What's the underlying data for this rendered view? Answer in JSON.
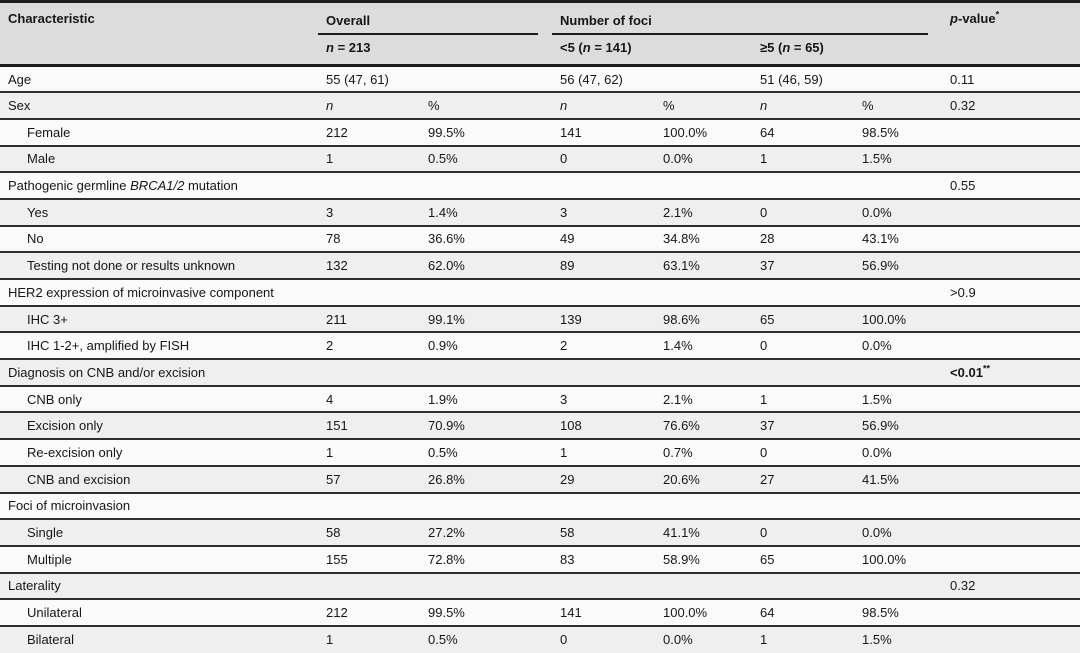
{
  "colors": {
    "header_bg": "#dcdcdc",
    "row_odd_bg": "#fafafa",
    "row_even_bg": "#efefef",
    "border_strong": "#1c1c1c",
    "border_row": "#2e2e2e",
    "text": "#161616"
  },
  "table": {
    "header": {
      "characteristic": "Characteristic",
      "overall_group": "Overall",
      "foci_group": "Number of foci",
      "pvalue": [
        {
          "t": "p",
          "i": true,
          "b": true
        },
        {
          "t": "-value",
          "b": true
        },
        {
          "t": "*",
          "sup": true
        }
      ],
      "overall_n": [
        {
          "t": "n",
          "i": true,
          "b": true
        },
        {
          "t": " = 213",
          "b": true
        }
      ],
      "foci_lt5": [
        {
          "t": "<5 (",
          "b": true
        },
        {
          "t": "n",
          "i": true,
          "b": true
        },
        {
          "t": " = 141)",
          "b": true
        }
      ],
      "foci_ge5": [
        {
          "t": "≥5 (",
          "b": true
        },
        {
          "t": "n",
          "i": true,
          "b": true
        },
        {
          "t": " = 65)",
          "b": true
        }
      ]
    },
    "subcolumns": [
      "n",
      "%",
      "n",
      "%",
      "n",
      "%"
    ],
    "rows": [
      {
        "name": "age",
        "label": "Age",
        "indent": false,
        "cells": [
          "55 (47, 61)",
          "",
          "56 (47, 62)",
          "",
          "51 (46, 59)",
          ""
        ],
        "p": "0.11"
      },
      {
        "name": "sex",
        "label": "Sex",
        "indent": false,
        "cells": [
          {
            "t": "n",
            "i": true
          },
          "%",
          {
            "t": "n",
            "i": true
          },
          "%",
          {
            "t": "n",
            "i": true
          },
          "%"
        ],
        "p": "0.32"
      },
      {
        "name": "female",
        "label": "Female",
        "indent": true,
        "cells": [
          "212",
          "99.5%",
          "141",
          "100.0%",
          "64",
          "98.5%"
        ],
        "p": ""
      },
      {
        "name": "male",
        "label": "Male",
        "indent": true,
        "cells": [
          "1",
          "0.5%",
          "0",
          "0.0%",
          "1",
          "1.5%"
        ],
        "p": ""
      },
      {
        "name": "brca-mutation",
        "label": [
          {
            "t": "Pathogenic germline "
          },
          {
            "t": "BRCA1/2",
            "i": true
          },
          {
            "t": " mutation"
          }
        ],
        "indent": false,
        "cells": [
          "",
          "",
          "",
          "",
          "",
          ""
        ],
        "p": "0.55"
      },
      {
        "name": "brca-yes",
        "label": "Yes",
        "indent": true,
        "cells": [
          "3",
          "1.4%",
          "3",
          "2.1%",
          "0",
          "0.0%"
        ],
        "p": ""
      },
      {
        "name": "brca-no",
        "label": "No",
        "indent": true,
        "cells": [
          "78",
          "36.6%",
          "49",
          "34.8%",
          "28",
          "43.1%"
        ],
        "p": ""
      },
      {
        "name": "brca-unknown",
        "label": "Testing not done or results unknown",
        "indent": true,
        "cells": [
          "132",
          "62.0%",
          "89",
          "63.1%",
          "37",
          "56.9%"
        ],
        "p": ""
      },
      {
        "name": "her2-expression",
        "label": "HER2 expression of microinvasive component",
        "indent": false,
        "cells": [
          "",
          "",
          "",
          "",
          "",
          ""
        ],
        "p": ">0.9"
      },
      {
        "name": "ihc-3plus",
        "label": "IHC 3+",
        "indent": true,
        "cells": [
          "211",
          "99.1%",
          "139",
          "98.6%",
          "65",
          "100.0%"
        ],
        "p": ""
      },
      {
        "name": "ihc-1-2plus",
        "label": "IHC 1-2+, amplified by FISH",
        "indent": true,
        "cells": [
          "2",
          "0.9%",
          "2",
          "1.4%",
          "0",
          "0.0%"
        ],
        "p": ""
      },
      {
        "name": "diagnosis",
        "label": "Diagnosis on CNB and/or excision",
        "indent": false,
        "cells": [
          "",
          "",
          "",
          "",
          "",
          ""
        ],
        "p": [
          {
            "t": "<0.01",
            "b": true
          },
          {
            "t": "**",
            "b": true,
            "sup": true
          }
        ]
      },
      {
        "name": "cnb-only",
        "label": "CNB only",
        "indent": true,
        "cells": [
          "4",
          "1.9%",
          "3",
          "2.1%",
          "1",
          "1.5%"
        ],
        "p": ""
      },
      {
        "name": "excision-only",
        "label": "Excision only",
        "indent": true,
        "cells": [
          "151",
          "70.9%",
          "108",
          "76.6%",
          "37",
          "56.9%"
        ],
        "p": ""
      },
      {
        "name": "re-excision-only",
        "label": "Re-excision only",
        "indent": true,
        "cells": [
          "1",
          "0.5%",
          "1",
          "0.7%",
          "0",
          "0.0%"
        ],
        "p": ""
      },
      {
        "name": "cnb-and-excision",
        "label": "CNB and excision",
        "indent": true,
        "cells": [
          "57",
          "26.8%",
          "29",
          "20.6%",
          "27",
          "41.5%"
        ],
        "p": ""
      },
      {
        "name": "foci-of-microinvasion",
        "label": "Foci of microinvasion",
        "indent": false,
        "cells": [
          "",
          "",
          "",
          "",
          "",
          ""
        ],
        "p": ""
      },
      {
        "name": "single",
        "label": "Single",
        "indent": true,
        "cells": [
          "58",
          "27.2%",
          "58",
          "41.1%",
          "0",
          "0.0%"
        ],
        "p": ""
      },
      {
        "name": "multiple",
        "label": "Multiple",
        "indent": true,
        "cells": [
          "155",
          "72.8%",
          "83",
          "58.9%",
          "65",
          "100.0%"
        ],
        "p": ""
      },
      {
        "name": "laterality",
        "label": "Laterality",
        "indent": false,
        "cells": [
          "",
          "",
          "",
          "",
          "",
          ""
        ],
        "p": "0.32"
      },
      {
        "name": "unilateral",
        "label": "Unilateral",
        "indent": true,
        "cells": [
          "212",
          "99.5%",
          "141",
          "100.0%",
          "64",
          "98.5%"
        ],
        "p": ""
      },
      {
        "name": "bilateral",
        "label": "Bilateral",
        "indent": true,
        "cells": [
          "1",
          "0.5%",
          "0",
          "0.0%",
          "1",
          "1.5%"
        ],
        "p": ""
      }
    ]
  }
}
